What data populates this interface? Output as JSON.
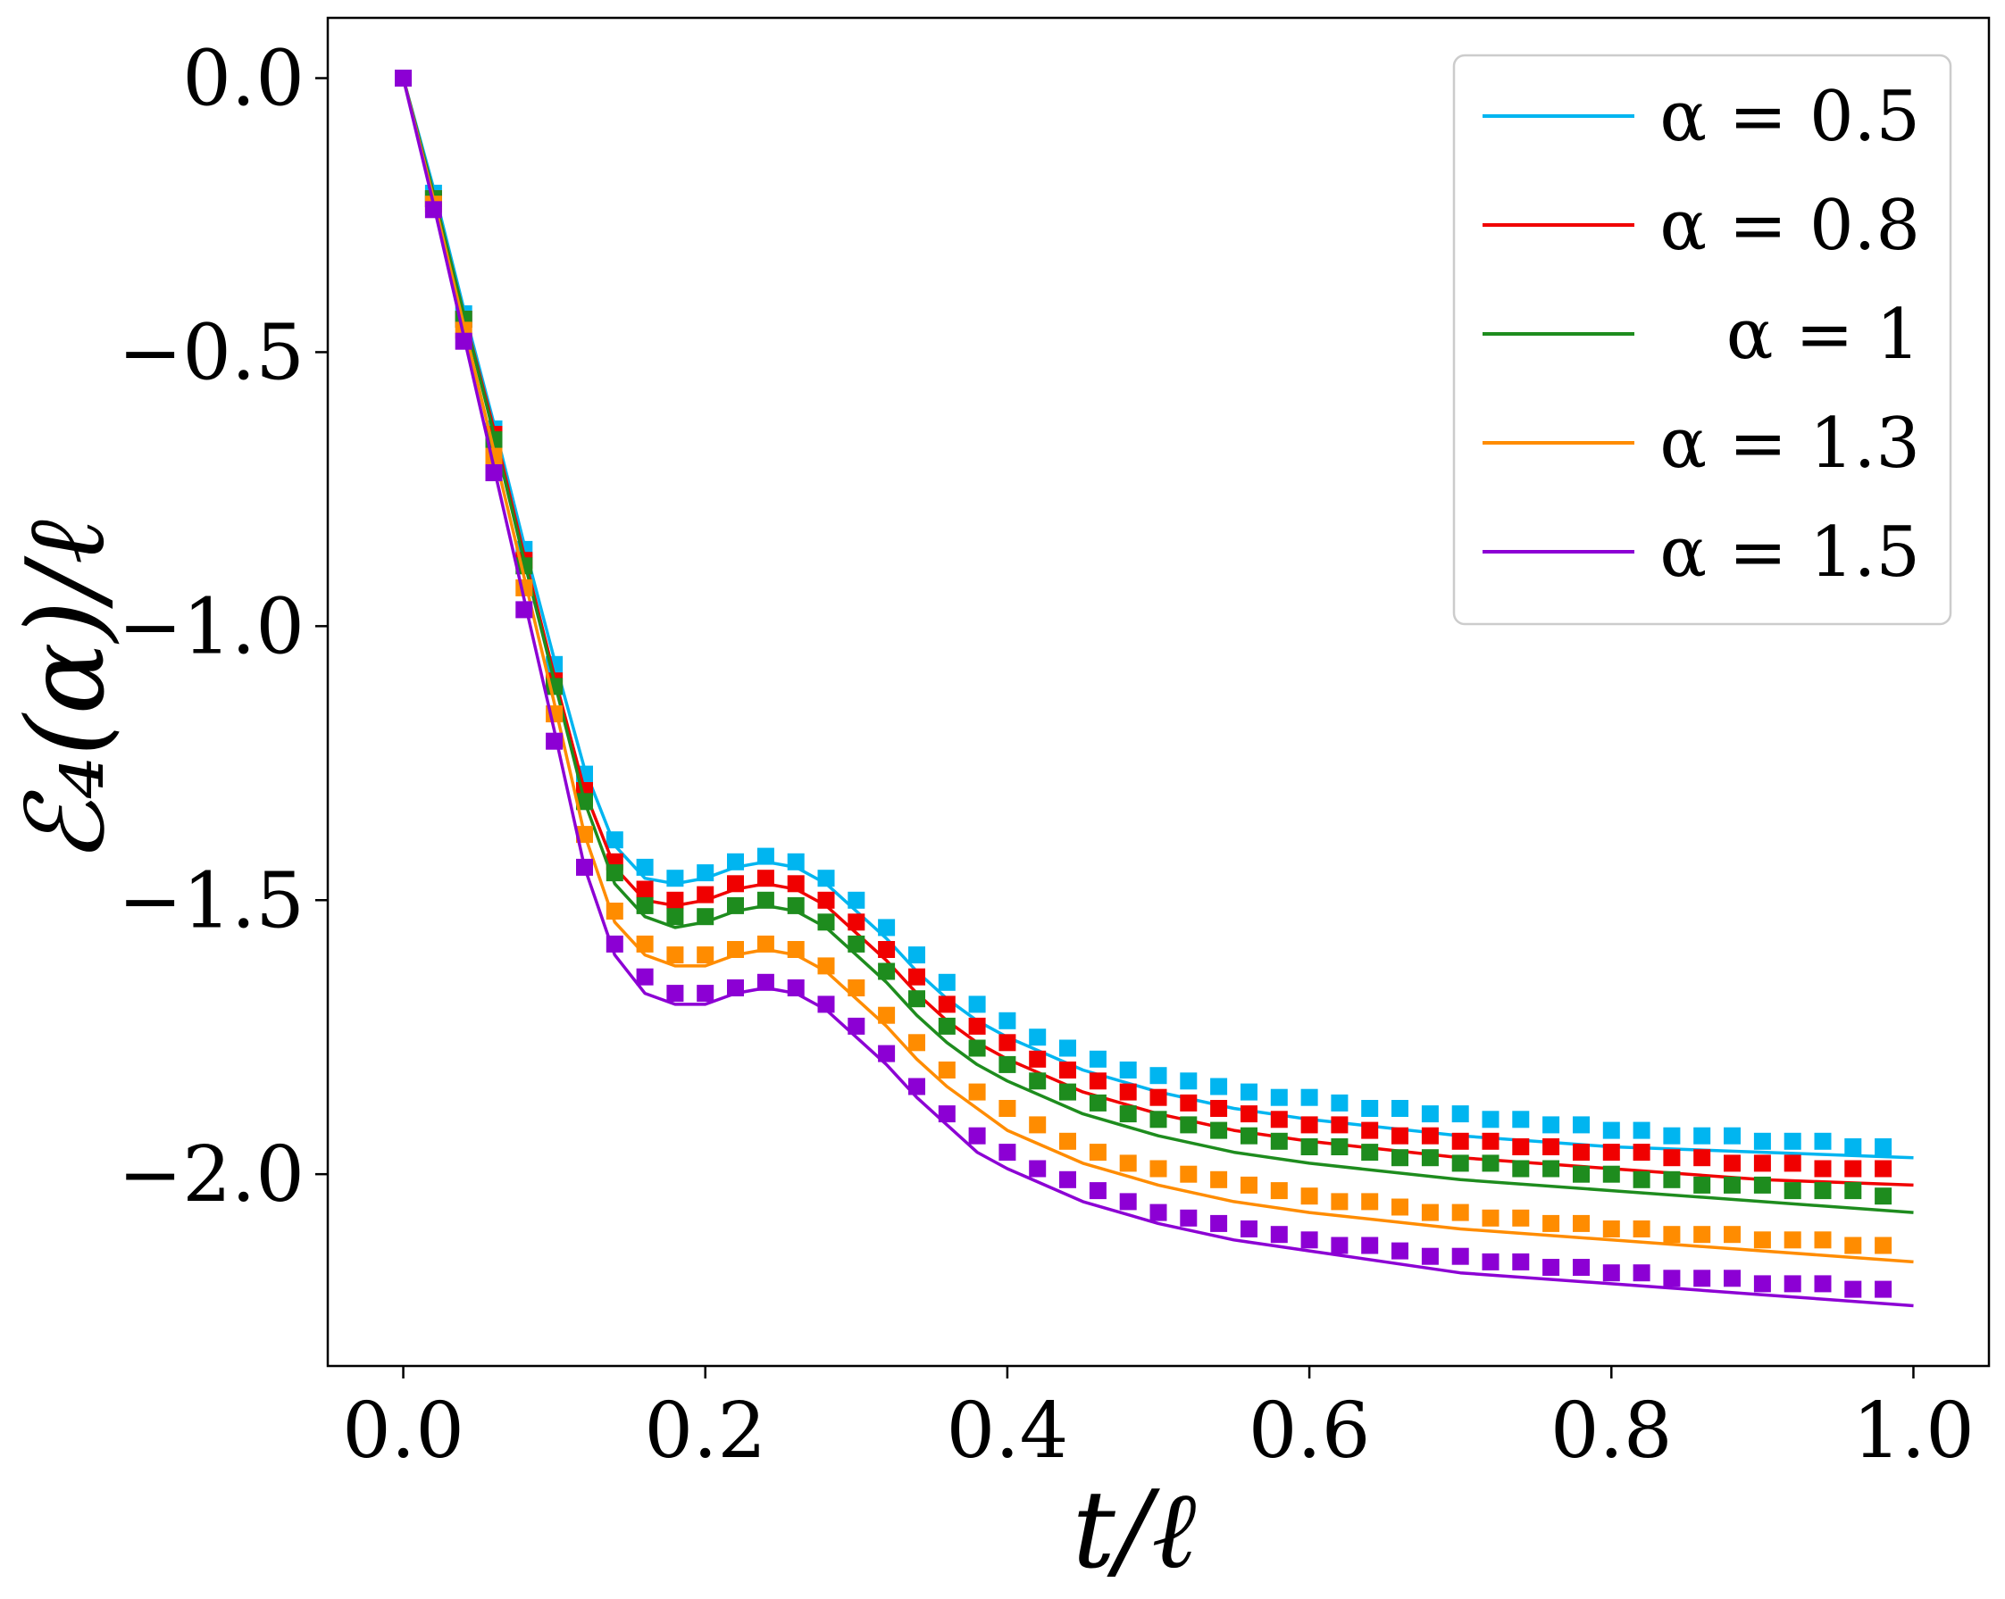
{
  "chart_data": {
    "type": "line",
    "title": "",
    "xlabel": "t/ℓ",
    "ylabel": "ℰ₄(α)/ℓ",
    "xlim": [
      -0.05,
      1.05
    ],
    "ylim": [
      -2.35,
      0.11
    ],
    "xticks": [
      0.0,
      0.2,
      0.4,
      0.6,
      0.8,
      1.0
    ],
    "xtick_labels": [
      "0.0",
      "0.2",
      "0.4",
      "0.6",
      "0.8",
      "1.0"
    ],
    "yticks": [
      0.0,
      -0.5,
      -1.0,
      -1.5,
      -2.0
    ],
    "ytick_labels": [
      "0.0",
      "−0.5",
      "−1.0",
      "−1.5",
      "−2.0"
    ],
    "grid": false,
    "legend_position": "top-right",
    "marker_x": [
      0.0,
      0.02,
      0.04,
      0.06,
      0.08,
      0.1,
      0.12,
      0.14,
      0.16,
      0.18,
      0.2,
      0.22,
      0.24,
      0.26,
      0.28,
      0.3,
      0.32,
      0.34,
      0.36,
      0.38,
      0.4,
      0.42,
      0.44,
      0.46,
      0.48,
      0.5,
      0.52,
      0.54,
      0.56,
      0.58,
      0.6,
      0.62,
      0.64,
      0.66,
      0.68,
      0.7,
      0.72,
      0.74,
      0.76,
      0.78,
      0.8,
      0.82,
      0.84,
      0.86,
      0.88,
      0.9,
      0.92,
      0.94,
      0.96,
      0.98
    ],
    "series": [
      {
        "name": "α = 0.5",
        "color": "#00b5f0",
        "line_x": [
          0.0,
          0.02,
          0.04,
          0.06,
          0.08,
          0.1,
          0.12,
          0.14,
          0.16,
          0.18,
          0.2,
          0.22,
          0.24,
          0.26,
          0.28,
          0.3,
          0.32,
          0.34,
          0.36,
          0.38,
          0.4,
          0.45,
          0.5,
          0.55,
          0.6,
          0.7,
          0.8,
          0.9,
          1.0
        ],
        "line_y": [
          0.0,
          -0.2,
          -0.42,
          -0.63,
          -0.85,
          -1.06,
          -1.26,
          -1.4,
          -1.46,
          -1.47,
          -1.46,
          -1.44,
          -1.43,
          -1.44,
          -1.47,
          -1.52,
          -1.57,
          -1.63,
          -1.68,
          -1.72,
          -1.75,
          -1.81,
          -1.85,
          -1.88,
          -1.9,
          -1.93,
          -1.95,
          -1.96,
          -1.97
        ],
        "marker_y": [
          0.0,
          -0.21,
          -0.43,
          -0.64,
          -0.86,
          -1.07,
          -1.27,
          -1.39,
          -1.44,
          -1.46,
          -1.45,
          -1.43,
          -1.42,
          -1.43,
          -1.46,
          -1.5,
          -1.55,
          -1.6,
          -1.65,
          -1.69,
          -1.72,
          -1.75,
          -1.77,
          -1.79,
          -1.81,
          -1.82,
          -1.83,
          -1.84,
          -1.85,
          -1.86,
          -1.86,
          -1.87,
          -1.88,
          -1.88,
          -1.89,
          -1.89,
          -1.9,
          -1.9,
          -1.91,
          -1.91,
          -1.92,
          -1.92,
          -1.93,
          -1.93,
          -1.93,
          -1.94,
          -1.94,
          -1.94,
          -1.95,
          -1.95
        ]
      },
      {
        "name": "α = 0.8",
        "color": "#f00000",
        "line_x": [
          0.0,
          0.02,
          0.04,
          0.06,
          0.08,
          0.1,
          0.12,
          0.14,
          0.16,
          0.18,
          0.2,
          0.22,
          0.24,
          0.26,
          0.28,
          0.3,
          0.32,
          0.34,
          0.36,
          0.38,
          0.4,
          0.45,
          0.5,
          0.55,
          0.6,
          0.7,
          0.8,
          0.9,
          1.0
        ],
        "line_y": [
          0.0,
          -0.21,
          -0.43,
          -0.64,
          -0.87,
          -1.09,
          -1.3,
          -1.44,
          -1.5,
          -1.51,
          -1.5,
          -1.48,
          -1.47,
          -1.48,
          -1.51,
          -1.56,
          -1.61,
          -1.67,
          -1.72,
          -1.76,
          -1.79,
          -1.85,
          -1.89,
          -1.92,
          -1.94,
          -1.97,
          -1.99,
          -2.01,
          -2.02
        ],
        "marker_y": [
          0.0,
          -0.22,
          -0.44,
          -0.65,
          -0.88,
          -1.1,
          -1.3,
          -1.43,
          -1.48,
          -1.5,
          -1.49,
          -1.47,
          -1.46,
          -1.47,
          -1.5,
          -1.54,
          -1.59,
          -1.64,
          -1.69,
          -1.73,
          -1.76,
          -1.79,
          -1.81,
          -1.83,
          -1.85,
          -1.86,
          -1.87,
          -1.88,
          -1.89,
          -1.9,
          -1.91,
          -1.91,
          -1.92,
          -1.93,
          -1.93,
          -1.94,
          -1.94,
          -1.95,
          -1.95,
          -1.96,
          -1.96,
          -1.96,
          -1.97,
          -1.97,
          -1.98,
          -1.98,
          -1.98,
          -1.99,
          -1.99,
          -1.99
        ]
      },
      {
        "name": "α = 1",
        "color": "#1e8c1e",
        "line_x": [
          0.0,
          0.02,
          0.04,
          0.06,
          0.08,
          0.1,
          0.12,
          0.14,
          0.16,
          0.18,
          0.2,
          0.22,
          0.24,
          0.26,
          0.28,
          0.3,
          0.32,
          0.34,
          0.36,
          0.38,
          0.4,
          0.45,
          0.5,
          0.55,
          0.6,
          0.7,
          0.8,
          0.9,
          1.0
        ],
        "line_y": [
          0.0,
          -0.21,
          -0.43,
          -0.65,
          -0.88,
          -1.1,
          -1.32,
          -1.47,
          -1.53,
          -1.55,
          -1.54,
          -1.52,
          -1.51,
          -1.52,
          -1.55,
          -1.6,
          -1.65,
          -1.71,
          -1.76,
          -1.8,
          -1.83,
          -1.89,
          -1.93,
          -1.96,
          -1.98,
          -2.01,
          -2.03,
          -2.05,
          -2.07
        ],
        "marker_y": [
          0.0,
          -0.22,
          -0.44,
          -0.66,
          -0.89,
          -1.11,
          -1.32,
          -1.45,
          -1.51,
          -1.53,
          -1.53,
          -1.51,
          -1.5,
          -1.51,
          -1.54,
          -1.58,
          -1.63,
          -1.68,
          -1.73,
          -1.77,
          -1.8,
          -1.83,
          -1.85,
          -1.87,
          -1.89,
          -1.9,
          -1.91,
          -1.92,
          -1.93,
          -1.94,
          -1.95,
          -1.95,
          -1.96,
          -1.97,
          -1.97,
          -1.98,
          -1.98,
          -1.99,
          -1.99,
          -2.0,
          -2.0,
          -2.01,
          -2.01,
          -2.02,
          -2.02,
          -2.02,
          -2.03,
          -2.03,
          -2.03,
          -2.04
        ]
      },
      {
        "name": "α = 1.3",
        "color": "#ff8c00",
        "line_x": [
          0.0,
          0.02,
          0.04,
          0.06,
          0.08,
          0.1,
          0.12,
          0.14,
          0.16,
          0.18,
          0.2,
          0.22,
          0.24,
          0.26,
          0.28,
          0.3,
          0.32,
          0.34,
          0.36,
          0.38,
          0.4,
          0.45,
          0.5,
          0.55,
          0.6,
          0.7,
          0.8,
          0.9,
          1.0
        ],
        "line_y": [
          0.0,
          -0.22,
          -0.45,
          -0.68,
          -0.91,
          -1.14,
          -1.38,
          -1.54,
          -1.6,
          -1.62,
          -1.62,
          -1.6,
          -1.59,
          -1.6,
          -1.63,
          -1.68,
          -1.73,
          -1.79,
          -1.84,
          -1.88,
          -1.92,
          -1.98,
          -2.02,
          -2.05,
          -2.07,
          -2.1,
          -2.12,
          -2.14,
          -2.16
        ],
        "marker_y": [
          0.0,
          -0.23,
          -0.46,
          -0.69,
          -0.93,
          -1.16,
          -1.38,
          -1.52,
          -1.58,
          -1.6,
          -1.6,
          -1.59,
          -1.58,
          -1.59,
          -1.62,
          -1.66,
          -1.71,
          -1.76,
          -1.81,
          -1.85,
          -1.88,
          -1.91,
          -1.94,
          -1.96,
          -1.98,
          -1.99,
          -2.0,
          -2.01,
          -2.02,
          -2.03,
          -2.04,
          -2.05,
          -2.05,
          -2.06,
          -2.07,
          -2.07,
          -2.08,
          -2.08,
          -2.09,
          -2.09,
          -2.1,
          -2.1,
          -2.11,
          -2.11,
          -2.11,
          -2.12,
          -2.12,
          -2.12,
          -2.13,
          -2.13
        ]
      },
      {
        "name": "α = 1.5",
        "color": "#8c00d4",
        "line_x": [
          0.0,
          0.02,
          0.04,
          0.06,
          0.08,
          0.1,
          0.12,
          0.14,
          0.16,
          0.18,
          0.2,
          0.22,
          0.24,
          0.26,
          0.28,
          0.3,
          0.32,
          0.34,
          0.36,
          0.38,
          0.4,
          0.45,
          0.5,
          0.55,
          0.6,
          0.7,
          0.8,
          0.9,
          1.0
        ],
        "line_y": [
          0.0,
          -0.23,
          -0.47,
          -0.71,
          -0.95,
          -1.19,
          -1.44,
          -1.6,
          -1.67,
          -1.69,
          -1.69,
          -1.67,
          -1.66,
          -1.67,
          -1.7,
          -1.75,
          -1.8,
          -1.86,
          -1.91,
          -1.96,
          -1.99,
          -2.05,
          -2.09,
          -2.12,
          -2.14,
          -2.18,
          -2.2,
          -2.22,
          -2.24
        ],
        "marker_y": [
          0.0,
          -0.24,
          -0.48,
          -0.72,
          -0.97,
          -1.21,
          -1.44,
          -1.58,
          -1.64,
          -1.67,
          -1.67,
          -1.66,
          -1.65,
          -1.66,
          -1.69,
          -1.73,
          -1.78,
          -1.84,
          -1.89,
          -1.93,
          -1.96,
          -1.99,
          -2.01,
          -2.03,
          -2.05,
          -2.07,
          -2.08,
          -2.09,
          -2.1,
          -2.11,
          -2.12,
          -2.13,
          -2.13,
          -2.14,
          -2.15,
          -2.15,
          -2.16,
          -2.16,
          -2.17,
          -2.17,
          -2.18,
          -2.18,
          -2.19,
          -2.19,
          -2.19,
          -2.2,
          -2.2,
          -2.2,
          -2.21,
          -2.21
        ]
      }
    ]
  }
}
